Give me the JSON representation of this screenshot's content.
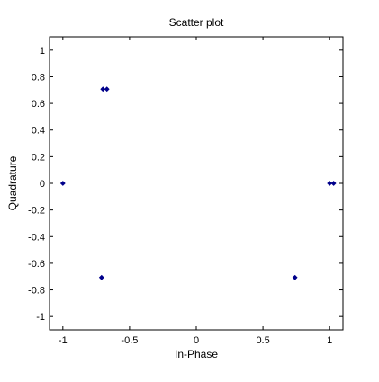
{
  "chart_data": {
    "type": "scatter",
    "title": "Scatter plot",
    "xlabel": "In-Phase",
    "ylabel": "Quadrature",
    "xlim": [
      -1.1,
      1.1
    ],
    "ylim": [
      -1.1,
      1.1
    ],
    "xticks": [
      -1,
      -0.5,
      0,
      0.5,
      1
    ],
    "xtick_labels": [
      "-1",
      "-0.5",
      "0",
      "0.5",
      "1"
    ],
    "yticks": [
      1,
      0.8,
      0.6,
      0.4,
      0.2,
      0,
      -0.2,
      -0.4,
      -0.6,
      -0.8,
      -1
    ],
    "ytick_labels": [
      "1",
      "0.8",
      "0.6",
      "0.4",
      "0.2",
      "0",
      "-0.2",
      "-0.4",
      "-0.6",
      "-0.8",
      "-1"
    ],
    "grid": false,
    "marker_color": "#00008b",
    "points": [
      {
        "x": -0.7,
        "y": 0.707
      },
      {
        "x": -0.67,
        "y": 0.707
      },
      {
        "x": -1.0,
        "y": 0.0
      },
      {
        "x": 1.0,
        "y": 0.0
      },
      {
        "x": 1.03,
        "y": 0.0
      },
      {
        "x": -0.71,
        "y": -0.707
      },
      {
        "x": 0.74,
        "y": -0.707
      }
    ]
  }
}
